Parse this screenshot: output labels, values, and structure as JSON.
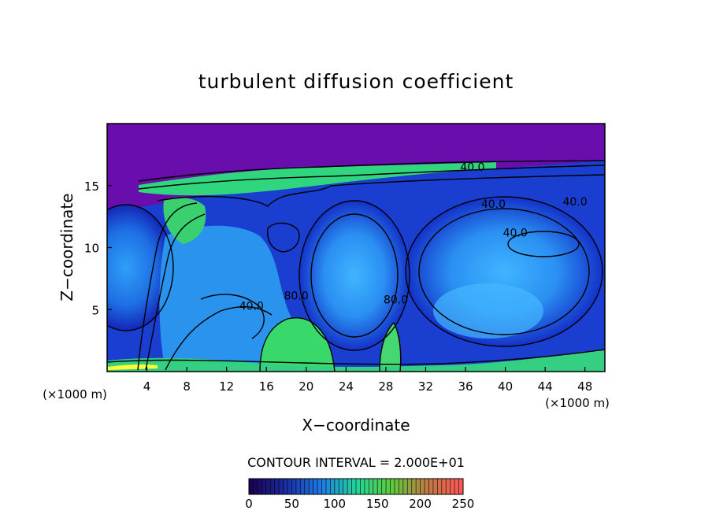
{
  "chart_data": {
    "type": "heatmap",
    "title": "turbulent diffusion coefficient",
    "xlabel": "X−coordinate",
    "ylabel": "Z−coordinate",
    "x_unit_left": "(×1000 m)",
    "x_unit_right": "(×1000 m)",
    "xlim": [
      0,
      50
    ],
    "ylim": [
      0,
      20
    ],
    "x_ticks": [
      4,
      8,
      12,
      16,
      20,
      24,
      28,
      32,
      36,
      40,
      44,
      48
    ],
    "y_ticks": [
      5,
      10,
      15
    ],
    "contour_interval_text": "CONTOUR INTERVAL = 2.000E+01",
    "contour_interval": 20,
    "contour_labels": [
      {
        "text": "40.0",
        "x": 36.7,
        "y": 16.2
      },
      {
        "text": "40.0",
        "x": 38.8,
        "y": 13.2
      },
      {
        "text": "40.0",
        "x": 47.0,
        "y": 13.4
      },
      {
        "text": "40.0",
        "x": 41.0,
        "y": 10.9
      },
      {
        "text": "40.0",
        "x": 14.5,
        "y": 5.0
      },
      {
        "text": "80.0",
        "x": 19.0,
        "y": 5.8
      },
      {
        "text": "80.0",
        "x": 29.0,
        "y": 5.5
      }
    ],
    "colorbar": {
      "min": 0,
      "max": 250,
      "ticks": [
        0,
        50,
        100,
        150,
        200,
        250
      ],
      "colors": [
        "#1b0050",
        "#1a2ba0",
        "#1e78e6",
        "#22d59b",
        "#5ecb3c",
        "#c07a45",
        "#ff5555"
      ]
    },
    "field_colors": {
      "background_low": "#6a0dad",
      "vortex_core": "#1c44d6",
      "mid": "#2aa3f2",
      "high": "#3fe06a",
      "peak": "#ffff33"
    }
  }
}
